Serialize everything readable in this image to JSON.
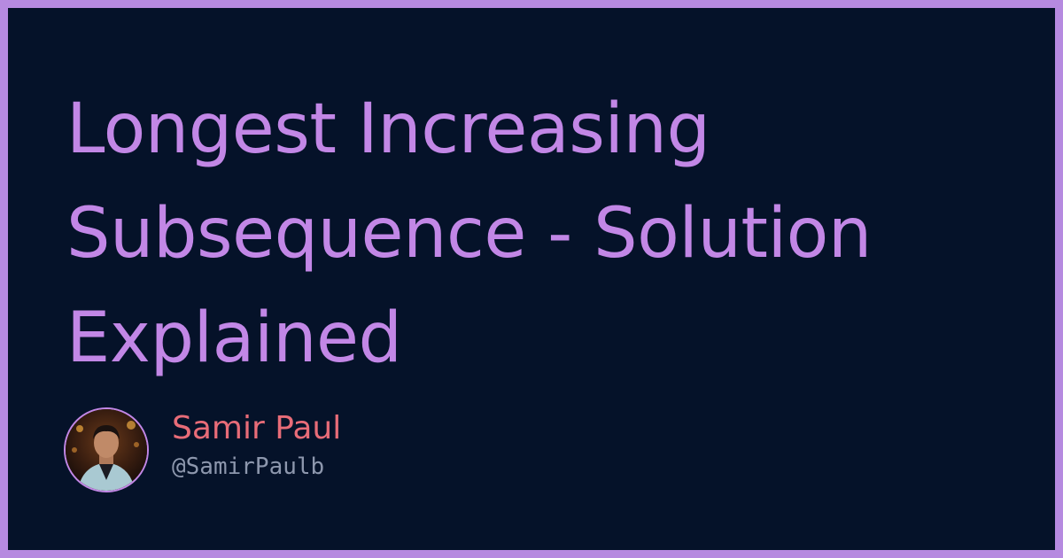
{
  "card": {
    "title": "Longest Increasing Subsequence - Solution Explained",
    "author": {
      "name": "Samir Paul",
      "handle": "@SamirPaulb",
      "avatar_icon": "profile-photo"
    }
  },
  "colors": {
    "border": "#b68ae0",
    "background": "#051229",
    "title": "#c287e6",
    "author_name": "#e86c78",
    "handle": "#8d97ad"
  }
}
